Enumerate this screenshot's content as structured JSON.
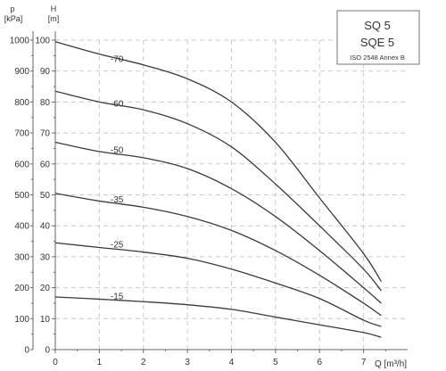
{
  "chart_data": {
    "type": "line",
    "title_box": {
      "line1": "SQ 5",
      "line2": "SQE 5",
      "line3": "ISO 2548 Annex B"
    },
    "xlabel": "Q [m³/h]",
    "ylabel_left_unit": "p",
    "ylabel_left_units": "[kPa]",
    "ylabel_right_unit": "H",
    "ylabel_right_units": "[m]",
    "xlim": [
      0,
      8
    ],
    "ylim": [
      0,
      100
    ],
    "xticks": [
      "0",
      "1",
      "2",
      "3",
      "4",
      "5",
      "6",
      "7"
    ],
    "pressure_ticks": [
      "0",
      "100",
      "200",
      "300",
      "400",
      "500",
      "600",
      "700",
      "800",
      "900",
      "1000"
    ],
    "head_ticks": [
      "0",
      "10",
      "20",
      "30",
      "40",
      "50",
      "60",
      "70",
      "80",
      "90",
      "100"
    ],
    "grid": true,
    "series": [
      {
        "name": "-70",
        "x": [
          0,
          1,
          2,
          3,
          4,
          5,
          6,
          7,
          7.4
        ],
        "y": [
          99.5,
          95.5,
          92,
          87.5,
          80,
          67,
          49,
          31,
          22
        ]
      },
      {
        "name": "-60",
        "x": [
          0,
          1,
          2,
          3,
          4,
          5,
          6,
          7,
          7.4
        ],
        "y": [
          83.5,
          80,
          77.5,
          73,
          65.5,
          53.5,
          40,
          26,
          19
        ]
      },
      {
        "name": "-50",
        "x": [
          0,
          1,
          2,
          3,
          4,
          5,
          6,
          7,
          7.4
        ],
        "y": [
          67,
          64,
          62,
          58.5,
          52,
          43,
          32,
          20,
          15
        ]
      },
      {
        "name": "-35",
        "x": [
          0,
          1,
          2,
          3,
          4,
          5,
          6,
          7,
          7.4
        ],
        "y": [
          50.5,
          48,
          46,
          43,
          38.5,
          32,
          24,
          15,
          11
        ]
      },
      {
        "name": "-25",
        "x": [
          0,
          1,
          2,
          3,
          4,
          5,
          6,
          7,
          7.4
        ],
        "y": [
          34.5,
          33,
          31.5,
          29.5,
          26,
          21.5,
          16.5,
          9.5,
          7.5
        ]
      },
      {
        "name": "-15",
        "x": [
          0,
          1,
          2,
          3,
          4,
          5,
          6,
          7,
          7.4
        ],
        "y": [
          17,
          16.3,
          15.5,
          14.5,
          13,
          10.5,
          8,
          5.5,
          4
        ]
      }
    ],
    "curve_labels": [
      {
        "text": "-70",
        "x": 1.4,
        "y": 93
      },
      {
        "text": "-60",
        "x": 1.4,
        "y": 78.5
      },
      {
        "text": "-50",
        "x": 1.4,
        "y": 63.5
      },
      {
        "text": "-35",
        "x": 1.4,
        "y": 47.5
      },
      {
        "text": "-25",
        "x": 1.4,
        "y": 33
      },
      {
        "text": "-15",
        "x": 1.4,
        "y": 16.3
      }
    ]
  }
}
